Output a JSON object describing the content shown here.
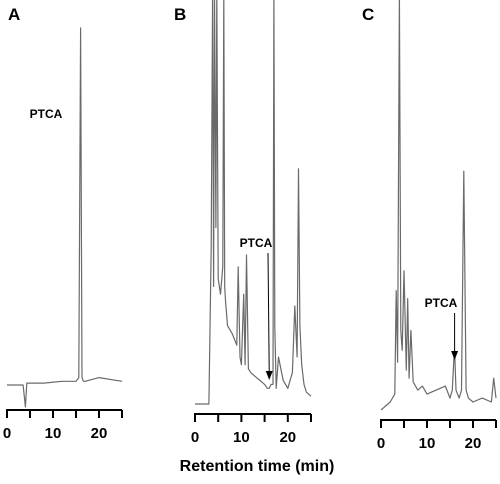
{
  "chart_data": [
    {
      "panel": "A",
      "type": "line",
      "xlabel": "",
      "xlim": [
        0,
        25
      ],
      "xticks": [
        0,
        10,
        20
      ],
      "peak_label": "PTCA",
      "peak_label_x": 16,
      "arrow": false,
      "x": [
        0,
        2,
        3.5,
        4,
        4.3,
        5,
        8,
        12,
        15,
        15.6,
        16,
        16.3,
        16.6,
        17,
        20,
        25
      ],
      "values": [
        0.03,
        0.03,
        0.03,
        -0.03,
        0.035,
        0.035,
        0.035,
        0.04,
        0.04,
        0.05,
        1.0,
        0.05,
        0.04,
        0.04,
        0.05,
        0.04
      ]
    },
    {
      "panel": "B",
      "type": "line",
      "xlabel": "",
      "xlim": [
        0,
        25
      ],
      "xticks": [
        0,
        10,
        20
      ],
      "peak_label": "PTCA",
      "peak_label_x": 16,
      "arrow": true,
      "x": [
        0,
        3,
        3.5,
        3.8,
        4.0,
        4.2,
        4.5,
        4.7,
        5,
        5.5,
        6,
        6.2,
        6.4,
        6.6,
        7,
        8,
        9,
        9.3,
        9.7,
        10,
        10.5,
        10.8,
        11.1,
        11.5,
        12,
        13,
        14,
        15,
        15.6,
        16,
        16.4,
        16.8,
        17.0,
        17.2,
        17.5,
        18,
        19,
        20,
        21,
        21.5,
        22,
        22.3,
        22.6,
        23,
        23.5,
        24,
        25
      ],
      "values": [
        0.0,
        0.0,
        0.4,
        1.05,
        0.3,
        1.05,
        0.45,
        1.05,
        0.32,
        0.28,
        0.35,
        1.05,
        0.3,
        0.26,
        0.2,
        0.18,
        0.15,
        0.35,
        0.12,
        0.1,
        0.28,
        0.1,
        0.38,
        0.09,
        0.08,
        0.07,
        0.06,
        0.05,
        0.04,
        0.04,
        0.05,
        0.05,
        1.05,
        0.2,
        0.04,
        0.12,
        0.06,
        0.04,
        0.08,
        0.25,
        0.12,
        0.6,
        0.2,
        0.1,
        0.05,
        0.03,
        0.02
      ]
    },
    {
      "panel": "C",
      "type": "line",
      "xlabel": "",
      "xlim": [
        0,
        25
      ],
      "xticks": [
        0,
        10,
        20
      ],
      "peak_label": "PTCA",
      "peak_label_x": 16,
      "arrow": true,
      "x": [
        0,
        1,
        2,
        3,
        3.3,
        3.6,
        4.0,
        4.3,
        4.6,
        5,
        5.5,
        5.8,
        6.1,
        6.5,
        7,
        7.5,
        8,
        9,
        10,
        12,
        14,
        15,
        15.5,
        15.8,
        16,
        16.3,
        17,
        17.5,
        18,
        18.5,
        19,
        20,
        22,
        24,
        24.5,
        25
      ],
      "values": [
        0.0,
        0.01,
        0.02,
        0.04,
        0.3,
        0.12,
        1.05,
        0.2,
        0.15,
        0.35,
        0.1,
        0.28,
        0.08,
        0.2,
        0.07,
        0.06,
        0.05,
        0.06,
        0.04,
        0.05,
        0.06,
        0.03,
        0.05,
        0.12,
        0.15,
        0.05,
        0.03,
        0.05,
        0.6,
        0.05,
        0.03,
        0.02,
        0.03,
        0.02,
        0.08,
        0.03
      ]
    }
  ],
  "xlabel": "Retention time (min)"
}
